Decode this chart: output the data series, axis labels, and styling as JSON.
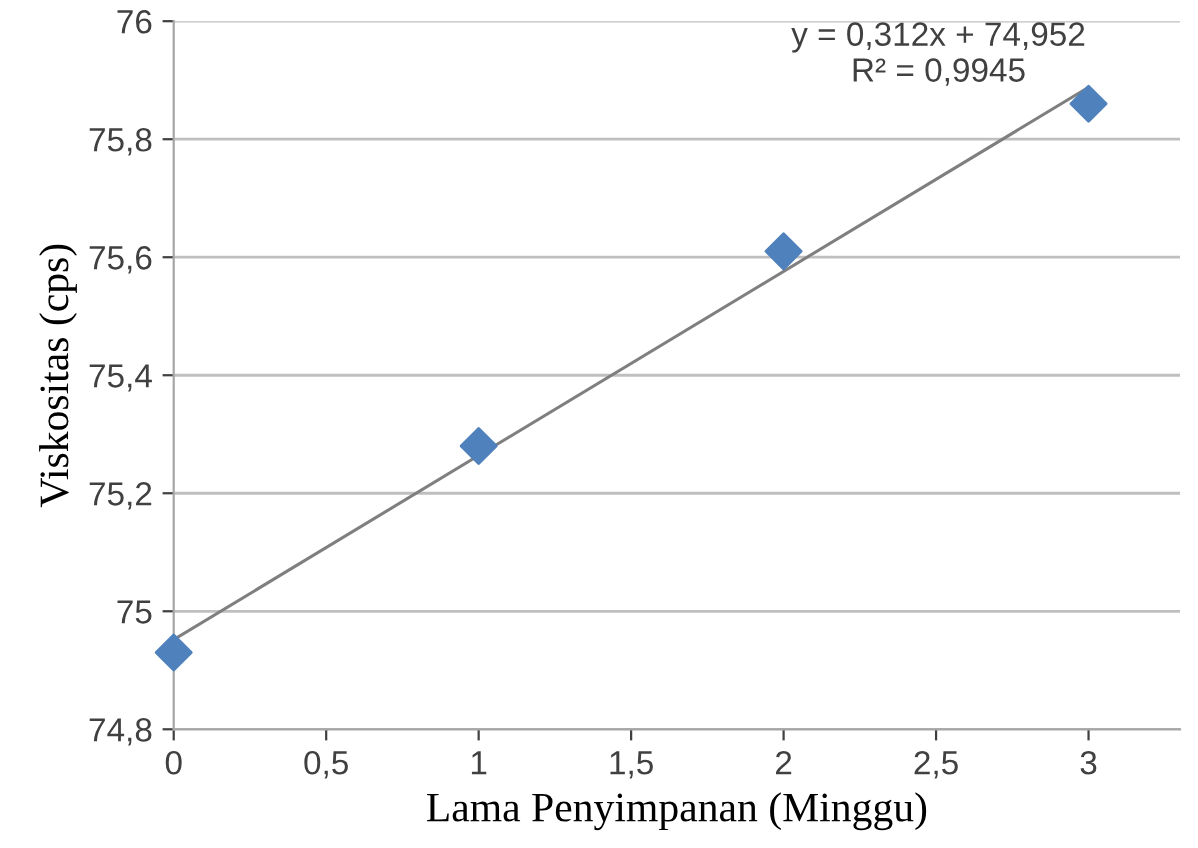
{
  "chart_data": {
    "type": "scatter",
    "xlabel": "Lama Penyimpanan (Minggu)",
    "ylabel": "Viskositas (cps)",
    "x": [
      0,
      1,
      2,
      3
    ],
    "series": [
      {
        "color": "#4f81bd",
        "marker": "diamond",
        "values": [
          74.93,
          75.28,
          75.61,
          75.86
        ]
      },
      {
        "type": "line",
        "color": "#7f7f7f",
        "marker": "none",
        "x": [
          0,
          3
        ],
        "values": [
          74.952,
          75.888
        ]
      }
    ],
    "annotations": [
      "y = 0,312x + 74,952\nR² = 0,9945"
    ],
    "xlim": [
      0,
      3.3
    ],
    "ylim": [
      74.8,
      76
    ],
    "xticks": [
      0,
      {
        "value": 0.5,
        "label": "0,5"
      },
      1,
      {
        "value": 1.5,
        "label": "1,5"
      },
      2,
      {
        "value": 2.5,
        "label": "2,5"
      },
      3
    ],
    "yticks": [
      {
        "value": 74.8,
        "label": "74,8"
      },
      75,
      {
        "value": 75.2,
        "label": "75,2"
      },
      {
        "value": 75.4,
        "label": "75,4"
      },
      {
        "value": 75.6,
        "label": "75,6"
      },
      {
        "value": 75.8,
        "label": "75,8"
      },
      76
    ],
    "grid": "y"
  }
}
